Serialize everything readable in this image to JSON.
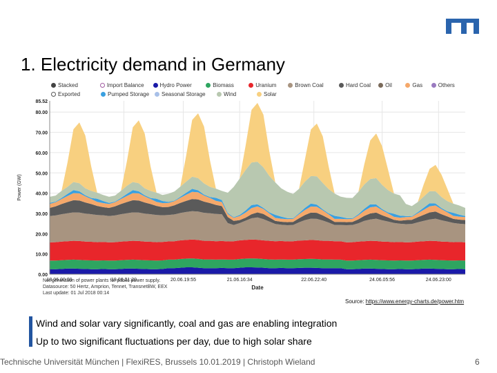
{
  "slide": {
    "title": "1. Electricity demand in Germany",
    "source_label": "Source: ",
    "source_link": "https://www.energy-charts.de/power.htm",
    "bullets": [
      "Wind and solar vary significantly, coal and gas are enabling integration",
      "Up to two significant fluctuations per day, due to high solar share"
    ],
    "footer": "Technische Universität München | FlexiRES, Brussels 10.01.2019 | Christoph Wieland",
    "page_number": "6",
    "accent_color": "#2255a0"
  },
  "chart_data": {
    "type": "area",
    "stacked": true,
    "title": "",
    "xlabel": "Date",
    "ylabel": "Power (GW)",
    "ylim": [
      0,
      85.52
    ],
    "y_ticks": [
      "0.00",
      "10.00",
      "20.00",
      "30.00",
      "40.00",
      "50.00",
      "60.00",
      "70.00",
      "80.00"
    ],
    "y_max_label": "85.52",
    "x_ticks": [
      "18.06.00:00",
      "19.06.21:20",
      "20.06.19:55",
      "21.06.16:34",
      "22.06.22:40",
      "24.06.05:56",
      "24.06.23:00"
    ],
    "legend": {
      "rows": [
        [
          {
            "name": "Stacked",
            "color": "#444444",
            "outline": false
          },
          {
            "name": "Import Balance",
            "color": "#a05aa0",
            "outline": true
          },
          {
            "name": "Hydro Power",
            "color": "#1a1aa8",
            "outline": false
          },
          {
            "name": "Biomass",
            "color": "#2ea560",
            "outline": false
          },
          {
            "name": "Uranium",
            "color": "#e8262b",
            "outline": false
          },
          {
            "name": "Brown Coal",
            "color": "#a89480",
            "outline": false
          },
          {
            "name": "Hard Coal",
            "color": "#5a5a5a",
            "outline": false
          },
          {
            "name": "Oil",
            "color": "#7a6a5a",
            "outline": false
          },
          {
            "name": "Gas",
            "color": "#f5a86a",
            "outline": false
          },
          {
            "name": "Others",
            "color": "#9a7ac0",
            "outline": false
          }
        ],
        [
          {
            "name": "Exported",
            "color": "#555555",
            "outline": true
          },
          {
            "name": "Pumped Storage",
            "color": "#3aa0e0",
            "outline": false
          },
          {
            "name": "Seasonal Storage",
            "color": "#a8c0e8",
            "outline": false
          },
          {
            "name": "Wind",
            "color": "#b8c8b0",
            "outline": false
          },
          {
            "name": "Solar",
            "color": "#f8d080",
            "outline": false
          }
        ]
      ]
    },
    "notes": [
      "Net generation of power plants for public power supply.",
      "Datasource: 50 Hertz, Amprion, Tennet, TransnetBW, EEX",
      "Last update: 01 Jul 2018 00:14"
    ],
    "x": [
      0,
      0.1,
      0.2,
      0.3,
      0.4,
      0.5,
      0.6,
      0.7,
      0.8,
      0.9,
      1,
      1.1,
      1.2,
      1.3,
      1.4,
      1.5,
      1.6,
      1.7,
      1.8,
      1.9,
      2,
      2.1,
      2.2,
      2.3,
      2.4,
      2.5,
      2.6,
      2.7,
      2.8,
      2.9,
      3,
      3.1,
      3.2,
      3.3,
      3.4,
      3.5,
      3.6,
      3.7,
      3.8,
      3.9,
      4,
      4.1,
      4.2,
      4.3,
      4.4,
      4.5,
      4.6,
      4.7,
      4.8,
      4.9,
      5,
      5.1,
      5.2,
      5.3,
      5.4,
      5.5,
      5.6,
      5.7,
      5.8,
      5.9,
      6,
      6.1,
      6.2,
      6.3,
      6.4,
      6.5,
      6.6,
      6.7,
      6.8,
      6.9,
      7
    ],
    "series": [
      {
        "name": "Hydro Power",
        "color": "#1a1aa8",
        "values": [
          2.5,
          2.5,
          2.6,
          2.8,
          2.8,
          2.7,
          2.6,
          2.5,
          2.5,
          2.6,
          2.5,
          2.5,
          2.6,
          2.8,
          2.8,
          2.7,
          2.6,
          2.5,
          2.5,
          2.6,
          3.0,
          3.0,
          3.2,
          3.4,
          3.4,
          3.2,
          3.0,
          3.0,
          3.0,
          3.1,
          3.0,
          3.0,
          3.2,
          3.4,
          3.4,
          3.3,
          3.2,
          3.0,
          3.0,
          3.1,
          3.0,
          3.0,
          3.1,
          3.2,
          3.2,
          3.1,
          3.0,
          3.0,
          3.0,
          3.0,
          2.5,
          2.5,
          2.6,
          2.8,
          2.8,
          2.7,
          2.6,
          2.5,
          2.5,
          2.6,
          2.5,
          2.5,
          2.6,
          2.8,
          2.8,
          2.7,
          2.6,
          2.5,
          2.5,
          2.6,
          2.5
        ]
      },
      {
        "name": "Biomass",
        "color": "#2ea560",
        "values": [
          4.2,
          4.2,
          4.3,
          4.3,
          4.4,
          4.4,
          4.3,
          4.3,
          4.2,
          4.2,
          4.2,
          4.2,
          4.3,
          4.3,
          4.4,
          4.4,
          4.3,
          4.3,
          4.2,
          4.2,
          4.2,
          4.2,
          4.3,
          4.3,
          4.4,
          4.4,
          4.3,
          4.3,
          4.2,
          4.2,
          4.2,
          4.2,
          4.3,
          4.3,
          4.4,
          4.4,
          4.3,
          4.3,
          4.2,
          4.2,
          4.2,
          4.2,
          4.3,
          4.3,
          4.4,
          4.4,
          4.3,
          4.3,
          4.2,
          4.2,
          4.2,
          4.2,
          4.3,
          4.3,
          4.4,
          4.4,
          4.3,
          4.3,
          4.2,
          4.2,
          4.2,
          4.2,
          4.3,
          4.3,
          4.4,
          4.4,
          4.3,
          4.3,
          4.2,
          4.2,
          4.2
        ]
      },
      {
        "name": "Uranium",
        "color": "#e8262b",
        "values": [
          9.0,
          9.1,
          9.2,
          9.2,
          9.3,
          9.3,
          9.2,
          9.2,
          9.1,
          9.1,
          9.0,
          9.1,
          9.2,
          9.2,
          9.3,
          9.3,
          9.2,
          9.2,
          9.1,
          9.1,
          9.0,
          9.1,
          9.2,
          9.2,
          9.3,
          9.3,
          9.2,
          9.2,
          9.1,
          9.1,
          9.0,
          9.1,
          9.2,
          9.2,
          9.3,
          9.3,
          9.2,
          9.2,
          9.1,
          9.1,
          9.0,
          9.1,
          9.2,
          9.2,
          9.3,
          9.3,
          9.2,
          9.2,
          9.1,
          9.1,
          9.0,
          9.1,
          9.2,
          9.2,
          9.3,
          9.3,
          9.2,
          9.2,
          9.1,
          9.1,
          9.0,
          9.1,
          9.2,
          9.2,
          9.3,
          9.3,
          9.2,
          9.2,
          9.1,
          9.1,
          9.0
        ]
      },
      {
        "name": "Brown Coal",
        "color": "#a89480",
        "values": [
          13.0,
          13.2,
          13.5,
          13.8,
          14.0,
          14.0,
          13.8,
          13.6,
          13.4,
          13.2,
          13.0,
          13.2,
          13.5,
          13.8,
          14.0,
          14.0,
          13.8,
          13.6,
          13.4,
          13.2,
          13.0,
          13.2,
          13.5,
          13.8,
          14.0,
          14.0,
          13.8,
          13.6,
          13.4,
          13.2,
          9.0,
          8.0,
          8.5,
          9.5,
          10.5,
          11.0,
          10.5,
          9.5,
          8.5,
          8.0,
          8.0,
          8.0,
          9.0,
          10.0,
          10.5,
          10.5,
          10.0,
          9.0,
          8.0,
          8.0,
          8.5,
          8.5,
          9.0,
          10.0,
          10.5,
          11.0,
          10.5,
          10.0,
          9.5,
          9.0,
          9.0,
          9.0,
          9.5,
          10.0,
          10.5,
          11.0,
          10.5,
          10.0,
          9.5,
          9.0,
          9.0
        ]
      },
      {
        "name": "Hard Coal",
        "color": "#5a5a5a",
        "values": [
          4.0,
          4.5,
          5.0,
          5.5,
          6.0,
          6.0,
          5.5,
          5.0,
          4.5,
          4.0,
          4.0,
          4.5,
          5.0,
          5.5,
          6.0,
          6.0,
          5.5,
          5.0,
          4.5,
          4.0,
          4.0,
          4.5,
          5.0,
          5.5,
          6.0,
          6.0,
          5.5,
          5.0,
          4.5,
          4.0,
          3.0,
          2.0,
          1.5,
          1.5,
          2.0,
          2.5,
          2.5,
          2.0,
          1.5,
          1.5,
          1.5,
          1.5,
          2.0,
          2.5,
          3.0,
          3.0,
          2.5,
          2.0,
          1.5,
          1.5,
          1.5,
          1.5,
          2.0,
          2.5,
          3.0,
          3.0,
          2.5,
          2.0,
          1.5,
          1.5,
          2.0,
          2.0,
          2.5,
          3.0,
          3.5,
          3.5,
          3.0,
          2.5,
          2.0,
          2.0,
          2.0
        ]
      },
      {
        "name": "Gas",
        "color": "#f5a86a",
        "values": [
          2.0,
          2.0,
          2.5,
          3.0,
          3.5,
          3.5,
          3.0,
          2.5,
          2.0,
          2.0,
          2.0,
          2.0,
          2.5,
          3.0,
          3.5,
          3.5,
          3.0,
          2.5,
          2.0,
          2.0,
          2.0,
          2.0,
          2.5,
          3.0,
          3.5,
          3.5,
          3.0,
          2.5,
          2.0,
          2.0,
          1.5,
          1.5,
          2.0,
          2.5,
          3.0,
          3.0,
          2.5,
          2.0,
          1.5,
          1.5,
          1.5,
          1.5,
          2.0,
          2.5,
          3.0,
          3.0,
          2.5,
          2.0,
          1.5,
          1.5,
          1.5,
          1.5,
          2.0,
          2.5,
          3.0,
          3.0,
          2.5,
          2.0,
          1.5,
          1.5,
          1.5,
          1.5,
          2.0,
          2.5,
          3.0,
          3.0,
          2.5,
          2.0,
          1.5,
          1.5,
          1.5
        ]
      },
      {
        "name": "Pumped Storage",
        "color": "#3aa0e0",
        "values": [
          0.5,
          0.3,
          0.5,
          1.0,
          1.5,
          1.0,
          0.5,
          0.5,
          1.5,
          1.0,
          0.5,
          0.3,
          0.5,
          1.0,
          1.5,
          1.0,
          0.5,
          0.5,
          1.5,
          1.0,
          0.5,
          0.3,
          0.5,
          1.0,
          1.5,
          1.0,
          0.5,
          0.5,
          1.5,
          1.0,
          0.5,
          0.3,
          0.5,
          1.0,
          1.5,
          1.0,
          0.5,
          0.5,
          1.5,
          1.0,
          0.5,
          0.3,
          0.5,
          1.0,
          1.5,
          1.0,
          0.5,
          0.5,
          1.5,
          1.0,
          0.5,
          0.3,
          0.5,
          1.0,
          1.5,
          1.0,
          0.5,
          0.5,
          1.5,
          1.0,
          0.5,
          0.3,
          0.5,
          1.0,
          1.5,
          1.0,
          0.5,
          0.5,
          1.5,
          1.0,
          0.5
        ]
      },
      {
        "name": "Wind",
        "color": "#b8c8b0",
        "values": [
          3.0,
          3.0,
          3.5,
          3.5,
          4.0,
          4.0,
          3.5,
          3.5,
          3.0,
          3.0,
          3.0,
          3.0,
          3.5,
          4.0,
          4.0,
          4.0,
          3.5,
          3.5,
          3.0,
          3.0,
          4.0,
          4.5,
          5.0,
          5.5,
          6.0,
          6.0,
          5.5,
          5.0,
          4.5,
          4.5,
          10.0,
          15.0,
          18.0,
          20.0,
          21.0,
          21.0,
          20.0,
          18.0,
          16.0,
          14.0,
          13.0,
          12.0,
          12.0,
          13.0,
          13.5,
          14.0,
          13.0,
          12.0,
          11.0,
          10.0,
          10.0,
          10.0,
          11.0,
          12.0,
          12.5,
          13.0,
          12.0,
          11.0,
          10.0,
          10.0,
          6.0,
          5.0,
          5.0,
          5.5,
          6.0,
          6.0,
          5.5,
          5.0,
          4.5,
          4.5,
          4.0
        ]
      },
      {
        "name": "Solar",
        "color": "#f8d080",
        "values": [
          0,
          0,
          0,
          12.0,
          26.0,
          30.0,
          26.0,
          12.0,
          0,
          0,
          0,
          0,
          0,
          12.0,
          27.0,
          31.0,
          27.0,
          12.0,
          0,
          0,
          0,
          0,
          0,
          13.0,
          28.0,
          32.0,
          28.0,
          13.0,
          0,
          0,
          0,
          0,
          0,
          12.0,
          26.0,
          29.0,
          26.0,
          12.0,
          0,
          0,
          0,
          0,
          0,
          11.0,
          23.0,
          26.0,
          23.0,
          11.0,
          0,
          0,
          0,
          0,
          0,
          10.0,
          19.0,
          22.0,
          19.0,
          10.0,
          0,
          0,
          0,
          0,
          0,
          6.0,
          11.0,
          13.0,
          11.0,
          6.0,
          0,
          0,
          0
        ]
      }
    ]
  }
}
